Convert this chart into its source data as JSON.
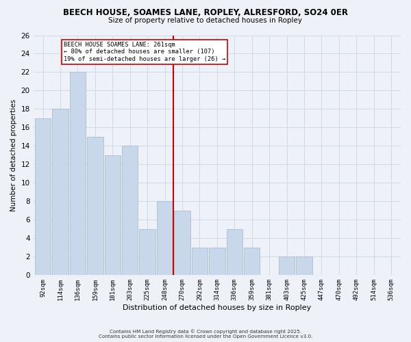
{
  "title": "BEECH HOUSE, SOAMES LANE, ROPLEY, ALRESFORD, SO24 0ER",
  "subtitle": "Size of property relative to detached houses in Ropley",
  "xlabel": "Distribution of detached houses by size in Ropley",
  "ylabel": "Number of detached properties",
  "bar_labels": [
    "92sqm",
    "114sqm",
    "136sqm",
    "159sqm",
    "181sqm",
    "203sqm",
    "225sqm",
    "248sqm",
    "270sqm",
    "292sqm",
    "314sqm",
    "336sqm",
    "359sqm",
    "381sqm",
    "403sqm",
    "425sqm",
    "447sqm",
    "470sqm",
    "492sqm",
    "514sqm",
    "536sqm"
  ],
  "bar_values": [
    17,
    18,
    22,
    15,
    13,
    14,
    5,
    8,
    7,
    3,
    3,
    5,
    3,
    0,
    2,
    2,
    0,
    0,
    0,
    0,
    0
  ],
  "bar_color": "#c8d8ea",
  "bar_edgecolor": "#aabfcc",
  "vline_color": "#cc0000",
  "annotation_title": "BEECH HOUSE SOAMES LANE: 261sqm",
  "annotation_line1": "← 80% of detached houses are smaller (107)",
  "annotation_line2": "19% of semi-detached houses are larger (26) →",
  "annotation_box_edgecolor": "#cc0000",
  "annotation_box_facecolor": "#ffffff",
  "ylim": [
    0,
    26
  ],
  "yticks": [
    0,
    2,
    4,
    6,
    8,
    10,
    12,
    14,
    16,
    18,
    20,
    22,
    24,
    26
  ],
  "grid_color": "#d0dae8",
  "background_color": "#eef2f8",
  "footer1": "Contains HM Land Registry data © Crown copyright and database right 2025.",
  "footer2": "Contains public sector information licensed under the Open Government Licence v3.0."
}
